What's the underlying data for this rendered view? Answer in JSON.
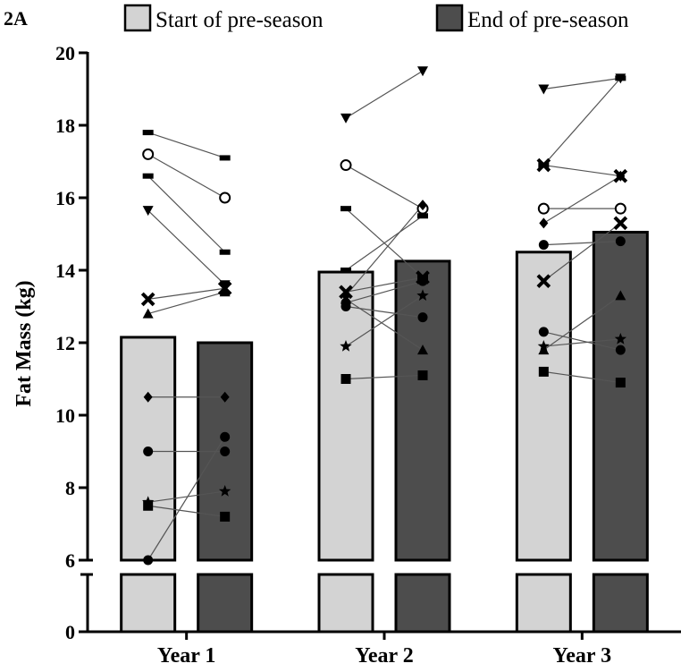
{
  "panel_label": "2A",
  "chart_data": {
    "type": "bar",
    "title": "",
    "xlabel": "",
    "ylabel": "Fat Mass (kg)",
    "ylim": [
      0,
      20
    ],
    "axis_break": [
      0,
      6
    ],
    "y_ticks": [
      0,
      6,
      8,
      10,
      12,
      14,
      16,
      18,
      20
    ],
    "categories": [
      "Year 1",
      "Year 2",
      "Year 3"
    ],
    "series": [
      {
        "name": "Start of pre-season",
        "color": "#d3d3d3",
        "values": [
          12.15,
          13.95,
          14.5
        ]
      },
      {
        "name": "End of pre-season",
        "color": "#4d4d4d",
        "values": [
          12.0,
          14.25,
          15.05
        ]
      }
    ],
    "individuals": [
      {
        "category": "Year 1",
        "pairs": [
          {
            "marker": "dash",
            "start": 17.8,
            "end": 17.1
          },
          {
            "marker": "circle-open",
            "start": 17.2,
            "end": 16.0
          },
          {
            "marker": "dash",
            "start": 16.6,
            "end": 14.5
          },
          {
            "marker": "triangle-down",
            "start": 15.65,
            "end": 13.6
          },
          {
            "marker": "cross",
            "start": 13.2,
            "end": 13.5
          },
          {
            "marker": "triangle-up",
            "start": 12.8,
            "end": 13.4
          },
          {
            "marker": "diamond",
            "start": 10.5,
            "end": 10.5
          },
          {
            "marker": "circle",
            "start": 9.0,
            "end": 9.0
          },
          {
            "marker": "star",
            "start": 7.6,
            "end": 7.9
          },
          {
            "marker": "square",
            "start": 7.5,
            "end": 7.2
          },
          {
            "marker": "circle",
            "start": 6.0,
            "end": 9.4
          }
        ]
      },
      {
        "category": "Year 2",
        "pairs": [
          {
            "marker": "triangle-down",
            "start": 18.2,
            "end": 19.5
          },
          {
            "marker": "circle-open",
            "start": 16.9,
            "end": 15.7
          },
          {
            "marker": "dash",
            "start": 15.7,
            "end": 13.8
          },
          {
            "marker": "dash",
            "start": 14.0,
            "end": 15.5
          },
          {
            "marker": "cross",
            "start": 13.4,
            "end": 13.8
          },
          {
            "marker": "diamond",
            "start": 13.3,
            "end": 15.8
          },
          {
            "marker": "triangle-up",
            "start": 13.2,
            "end": 11.8
          },
          {
            "marker": "circle",
            "start": 13.0,
            "end": 12.7
          },
          {
            "marker": "circle",
            "start": 13.1,
            "end": 13.7
          },
          {
            "marker": "star",
            "start": 11.9,
            "end": 13.3
          },
          {
            "marker": "square",
            "start": 11.0,
            "end": 11.1
          }
        ]
      },
      {
        "category": "Year 3",
        "pairs": [
          {
            "marker": "triangle-down",
            "start": 19.0,
            "end": 19.3
          },
          {
            "marker": "dash",
            "start": 16.9,
            "end": 19.3
          },
          {
            "marker": "cross",
            "start": 16.9,
            "end": 16.6
          },
          {
            "marker": "circle-open",
            "start": 15.7,
            "end": 15.7
          },
          {
            "marker": "diamond",
            "start": 15.3,
            "end": 16.6
          },
          {
            "marker": "circle",
            "start": 14.7,
            "end": 14.8
          },
          {
            "marker": "cross",
            "start": 13.7,
            "end": 15.3
          },
          {
            "marker": "circle",
            "start": 12.3,
            "end": 11.8
          },
          {
            "marker": "star",
            "start": 11.9,
            "end": 12.1
          },
          {
            "marker": "triangle-up",
            "start": 11.8,
            "end": 13.3
          },
          {
            "marker": "square",
            "start": 11.2,
            "end": 10.9
          }
        ]
      }
    ]
  }
}
